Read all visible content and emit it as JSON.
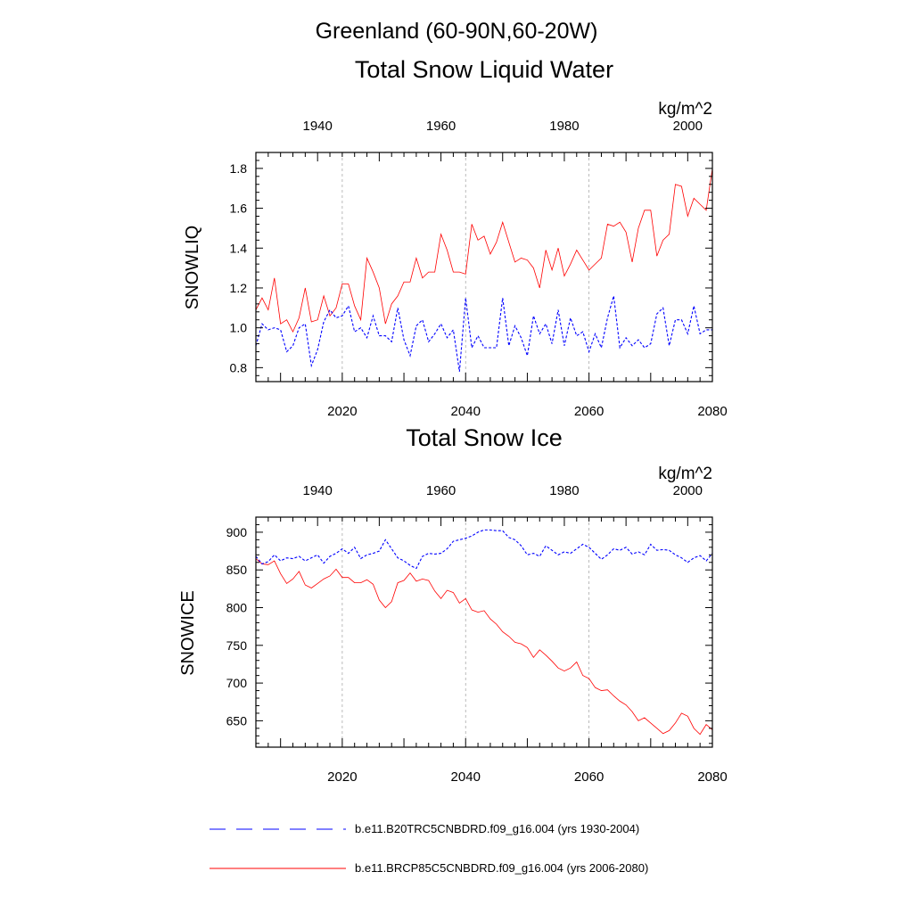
{
  "figure": {
    "region_title": "Greenland (60-90N,60-20W)",
    "units": "kg/m^2",
    "colors": {
      "rcp": "#ff0000",
      "hist": "#0000ff",
      "grid": "#aaaaaa",
      "axis": "#000000"
    }
  },
  "legend": [
    {
      "label": "b.e11.B20TRC5CNBDRD.f09_g16.004 (yrs 1930-2004)",
      "style": "dashed",
      "color": "#0000ff"
    },
    {
      "label": "b.e11.BRCP85C5CNBDRD.f09_g16.004 (yrs 2006-2080)",
      "style": "solid",
      "color": "#ff0000"
    }
  ],
  "chart_data": [
    {
      "type": "line",
      "title": "Total Snow Liquid Water",
      "ylabel": "SNOWLIQ",
      "units_label": "kg/m^2",
      "ylim": [
        0.73,
        1.88
      ],
      "yticks": [
        0.8,
        1.0,
        1.2,
        1.4,
        1.6,
        1.8
      ],
      "ytick_labels": [
        "0.8",
        "1.0",
        "1.2",
        "1.4",
        "1.6",
        "1.8"
      ],
      "bottom_axis": {
        "range": [
          2006,
          2080
        ],
        "ticks": [
          2020,
          2040,
          2060,
          2080
        ],
        "tick_labels": [
          "2020",
          "2040",
          "2060",
          "2080"
        ],
        "color": "#ff0000"
      },
      "top_axis": {
        "range": [
          1930,
          2004
        ],
        "ticks": [
          1940,
          1960,
          1980,
          2000
        ],
        "tick_labels": [
          "1940",
          "1960",
          "1980",
          "2000"
        ],
        "color": "#0000ff"
      },
      "grid_x": [
        2020,
        2040,
        2060
      ],
      "series": [
        {
          "name": "b.e11.BRCP85C5CNBDRD.f09_g16.004 (yrs 2006-2080)",
          "axis": "bottom",
          "x_start": 2006,
          "color": "#ff0000",
          "dash": "solid",
          "values": [
            1.09,
            1.15,
            1.09,
            1.25,
            1.02,
            1.04,
            0.98,
            1.05,
            1.2,
            1.03,
            1.04,
            1.16,
            1.06,
            1.1,
            1.22,
            1.22,
            1.11,
            1.04,
            1.35,
            1.28,
            1.2,
            1.02,
            1.12,
            1.16,
            1.23,
            1.23,
            1.35,
            1.25,
            1.28,
            1.28,
            1.47,
            1.39,
            1.28,
            1.28,
            1.27,
            1.52,
            1.44,
            1.46,
            1.37,
            1.43,
            1.53,
            1.43,
            1.33,
            1.35,
            1.34,
            1.3,
            1.2,
            1.39,
            1.29,
            1.4,
            1.26,
            1.32,
            1.39,
            1.34,
            1.29,
            1.32,
            1.35,
            1.52,
            1.51,
            1.53,
            1.48,
            1.33,
            1.5,
            1.59,
            1.59,
            1.36,
            1.44,
            1.47,
            1.72,
            1.71,
            1.56,
            1.65,
            1.62,
            1.59,
            1.8
          ]
        },
        {
          "name": "b.e11.B20TRC5CNBDRD.f09_g16.004 (yrs 1930-2004)",
          "axis": "top",
          "x_start": 1930,
          "color": "#0000ff",
          "dash": "dashed",
          "values": [
            0.91,
            1.02,
            0.99,
            1.0,
            0.99,
            0.88,
            0.91,
            1.0,
            1.02,
            0.81,
            0.89,
            1.03,
            1.09,
            1.05,
            1.06,
            1.11,
            0.98,
            1.0,
            0.95,
            1.06,
            0.96,
            0.96,
            0.93,
            1.1,
            0.94,
            0.86,
            1.01,
            1.04,
            0.93,
            0.97,
            1.02,
            0.95,
            0.99,
            0.78,
            1.15,
            0.9,
            0.96,
            0.9,
            0.9,
            0.9,
            1.15,
            0.91,
            1.01,
            0.95,
            0.86,
            1.06,
            0.97,
            1.02,
            0.92,
            1.09,
            0.91,
            1.05,
            0.96,
            0.98,
            0.88,
            0.97,
            0.9,
            1.05,
            1.16,
            0.9,
            0.95,
            0.91,
            0.94,
            0.9,
            0.92,
            1.07,
            1.1,
            0.91,
            1.04,
            1.04,
            0.97,
            1.11,
            0.97,
            0.99,
            0.99
          ]
        }
      ]
    },
    {
      "type": "line",
      "title": "Total Snow Ice",
      "ylabel": "SNOWICE",
      "units_label": "kg/m^2",
      "ylim": [
        615,
        920
      ],
      "yticks": [
        650,
        700,
        750,
        800,
        850,
        900
      ],
      "ytick_labels": [
        "650",
        "700",
        "750",
        "800",
        "850",
        "900"
      ],
      "bottom_axis": {
        "range": [
          2006,
          2080
        ],
        "ticks": [
          2020,
          2040,
          2060,
          2080
        ],
        "tick_labels": [
          "2020",
          "2040",
          "2060",
          "2080"
        ],
        "color": "#ff0000"
      },
      "top_axis": {
        "range": [
          1930,
          2004
        ],
        "ticks": [
          1940,
          1960,
          1980,
          2000
        ],
        "tick_labels": [
          "1940",
          "1960",
          "1980",
          "2000"
        ],
        "color": "#0000ff"
      },
      "grid_x": [
        2020,
        2040,
        2060
      ],
      "series": [
        {
          "name": "b.e11.BRCP85C5CNBDRD.f09_g16.004 (yrs 2006-2080)",
          "axis": "bottom",
          "x_start": 2006,
          "color": "#ff0000",
          "dash": "solid",
          "values": [
            865,
            858,
            857,
            862,
            845,
            832,
            838,
            848,
            830,
            826,
            832,
            838,
            842,
            851,
            840,
            840,
            833,
            833,
            837,
            831,
            810,
            800,
            808,
            833,
            836,
            846,
            835,
            838,
            836,
            822,
            812,
            823,
            820,
            806,
            812,
            797,
            794,
            796,
            785,
            778,
            768,
            762,
            754,
            752,
            747,
            734,
            744,
            737,
            729,
            720,
            716,
            720,
            728,
            710,
            706,
            694,
            690,
            691,
            683,
            676,
            671,
            662,
            650,
            654,
            647,
            640,
            633,
            637,
            647,
            660,
            656,
            640,
            632,
            645,
            638
          ]
        },
        {
          "name": "b.e11.B20TRC5CNBDRD.f09_g16.004 (yrs 1930-2004)",
          "axis": "top",
          "x_start": 1930,
          "color": "#0000ff",
          "dash": "dashed",
          "values": [
            868,
            858,
            861,
            870,
            862,
            866,
            865,
            868,
            862,
            866,
            870,
            859,
            868,
            872,
            878,
            872,
            880,
            865,
            870,
            872,
            875,
            890,
            878,
            866,
            862,
            856,
            852,
            868,
            872,
            871,
            872,
            878,
            888,
            890,
            892,
            895,
            900,
            903,
            903,
            902,
            902,
            893,
            890,
            882,
            870,
            872,
            868,
            882,
            876,
            870,
            874,
            872,
            878,
            884,
            880,
            872,
            864,
            870,
            878,
            876,
            880,
            871,
            874,
            870,
            884,
            876,
            877,
            876,
            870,
            866,
            860,
            866,
            869,
            862,
            872
          ]
        }
      ]
    }
  ]
}
